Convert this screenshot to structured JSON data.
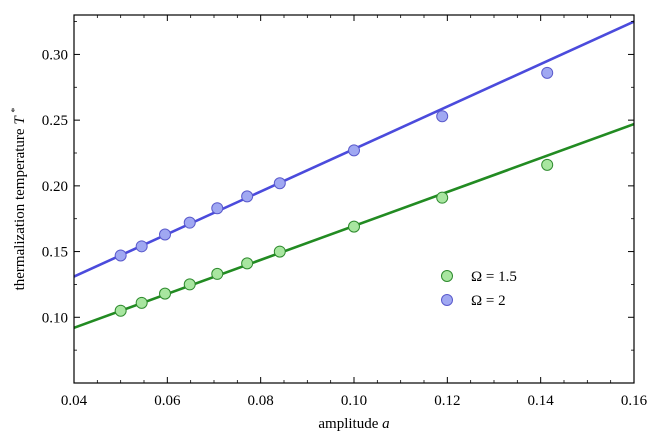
{
  "chart_data": {
    "type": "scatter",
    "xlabel": "amplitude",
    "xlabel_var": "a",
    "ylabel": "thermalization temperature",
    "ylabel_var": "T",
    "ylabel_sup": "*",
    "xlim": [
      0.04,
      0.16
    ],
    "ylim": [
      0.05,
      0.33
    ],
    "xticks": [
      0.04,
      0.06,
      0.08,
      0.1,
      0.12,
      0.14,
      0.16
    ],
    "xtick_labels": [
      "0.04",
      "0.06",
      "0.08",
      "0.10",
      "0.12",
      "0.14",
      "0.16"
    ],
    "yticks": [
      0.1,
      0.15,
      0.2,
      0.25,
      0.3
    ],
    "ytick_labels": [
      "0.10",
      "0.15",
      "0.20",
      "0.25",
      "0.30"
    ],
    "grid": false,
    "legend_position": "right-center",
    "series": [
      {
        "name": "Ω = 1.5",
        "marker_color": "#a8e6a0",
        "edge_color": "#2e8b2e",
        "line_color": "#228b22",
        "x": [
          0.05,
          0.0545,
          0.0595,
          0.0648,
          0.0707,
          0.0771,
          0.0841,
          0.1,
          0.1189,
          0.1414
        ],
        "y": [
          0.105,
          0.111,
          0.118,
          0.125,
          0.133,
          0.141,
          0.15,
          0.169,
          0.191,
          0.216
        ],
        "fit": {
          "x": [
            0.04,
            0.16
          ],
          "y": [
            0.092,
            0.247
          ]
        }
      },
      {
        "name": "Ω = 2",
        "marker_color": "#a0a8f2",
        "edge_color": "#5a5acc",
        "line_color": "#4b4bdc",
        "x": [
          0.05,
          0.0545,
          0.0595,
          0.0648,
          0.0707,
          0.0771,
          0.0841,
          0.1,
          0.1189,
          0.1414
        ],
        "y": [
          0.147,
          0.154,
          0.163,
          0.172,
          0.183,
          0.192,
          0.202,
          0.227,
          0.253,
          0.286
        ],
        "fit": {
          "x": [
            0.04,
            0.16
          ],
          "y": [
            0.131,
            0.325
          ]
        }
      }
    ]
  }
}
